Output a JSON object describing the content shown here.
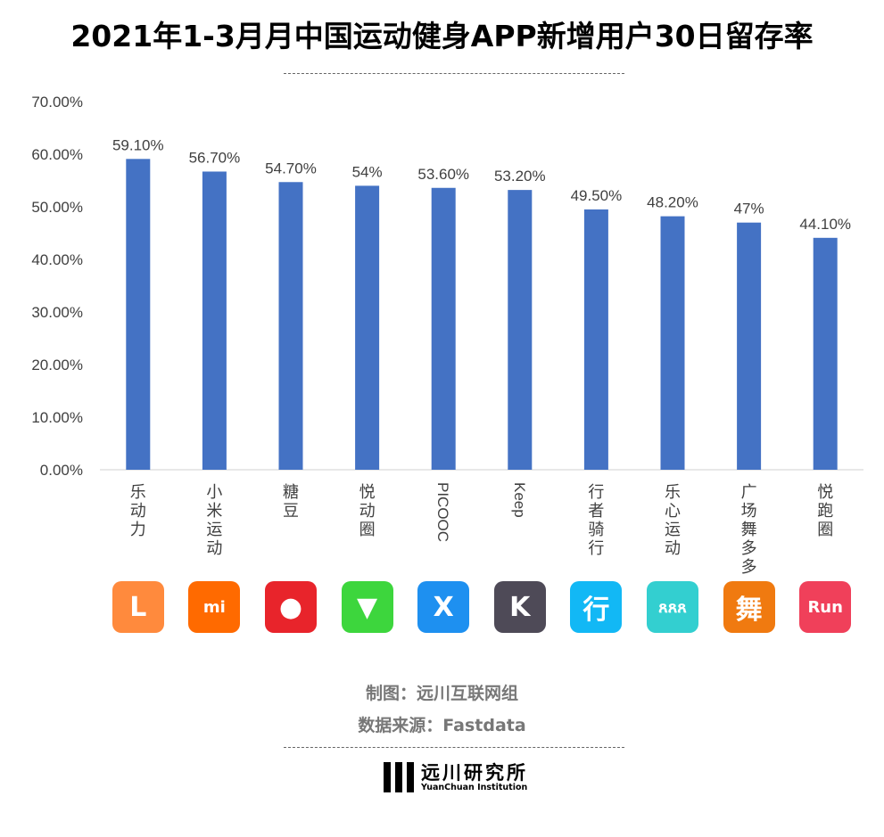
{
  "title": "2021年1-3月月中国运动健身APP新增用户30日留存率",
  "chart_data": {
    "type": "bar",
    "title": "2021年1-3月月中国运动健身APP新增用户30日留存率",
    "categories": [
      "乐动力",
      "小米运动",
      "糖豆",
      "悦动圈",
      "PICOOC",
      "Keep",
      "行者骑行",
      "乐心运动",
      "广场舞多多",
      "悦跑圈"
    ],
    "values": [
      59.1,
      56.7,
      54.7,
      54,
      53.6,
      53.2,
      49.5,
      48.2,
      47,
      44.1
    ],
    "data_labels": [
      "59.10%",
      "56.70%",
      "54.70%",
      "54%",
      "53.60%",
      "53.20%",
      "49.50%",
      "48.20%",
      "47%",
      "44.10%"
    ],
    "yticks": [
      "0.00%",
      "10.00%",
      "20.00%",
      "30.00%",
      "40.00%",
      "50.00%",
      "60.00%",
      "70.00%"
    ],
    "ylim": [
      0,
      70
    ],
    "xlabel": "",
    "ylabel": "",
    "grid": false,
    "bar_color": "#4472C4"
  },
  "icons": [
    {
      "name": "ledongli-icon",
      "glyph": "L",
      "bg": "#FF8A3D"
    },
    {
      "name": "xiaomi-sport-icon",
      "glyph": "mi",
      "bg": "#FF6A00"
    },
    {
      "name": "tangdou-icon",
      "glyph": "●",
      "bg": "#E8242B"
    },
    {
      "name": "yuedongquan-icon",
      "glyph": "▼",
      "bg": "#3DD63D"
    },
    {
      "name": "picooc-icon",
      "glyph": "X",
      "bg": "#1E90F0"
    },
    {
      "name": "keep-icon",
      "glyph": "K",
      "bg": "#4E4A57"
    },
    {
      "name": "xingzhe-icon",
      "glyph": "行",
      "bg": "#12B8F5"
    },
    {
      "name": "lexin-icon",
      "glyph": "ጸጸጸ",
      "bg": "#33CFD0"
    },
    {
      "name": "guangchangwu-icon",
      "glyph": "舞",
      "bg": "#F07A10"
    },
    {
      "name": "yuepao-icon",
      "glyph": "Run",
      "bg": "#F0405A"
    }
  ],
  "credits": {
    "made_by": "制图：远川互联网组",
    "source": "数据来源：Fastdata"
  },
  "logo": {
    "cn": "远川研究所",
    "en": "YuanChuan Institution"
  }
}
